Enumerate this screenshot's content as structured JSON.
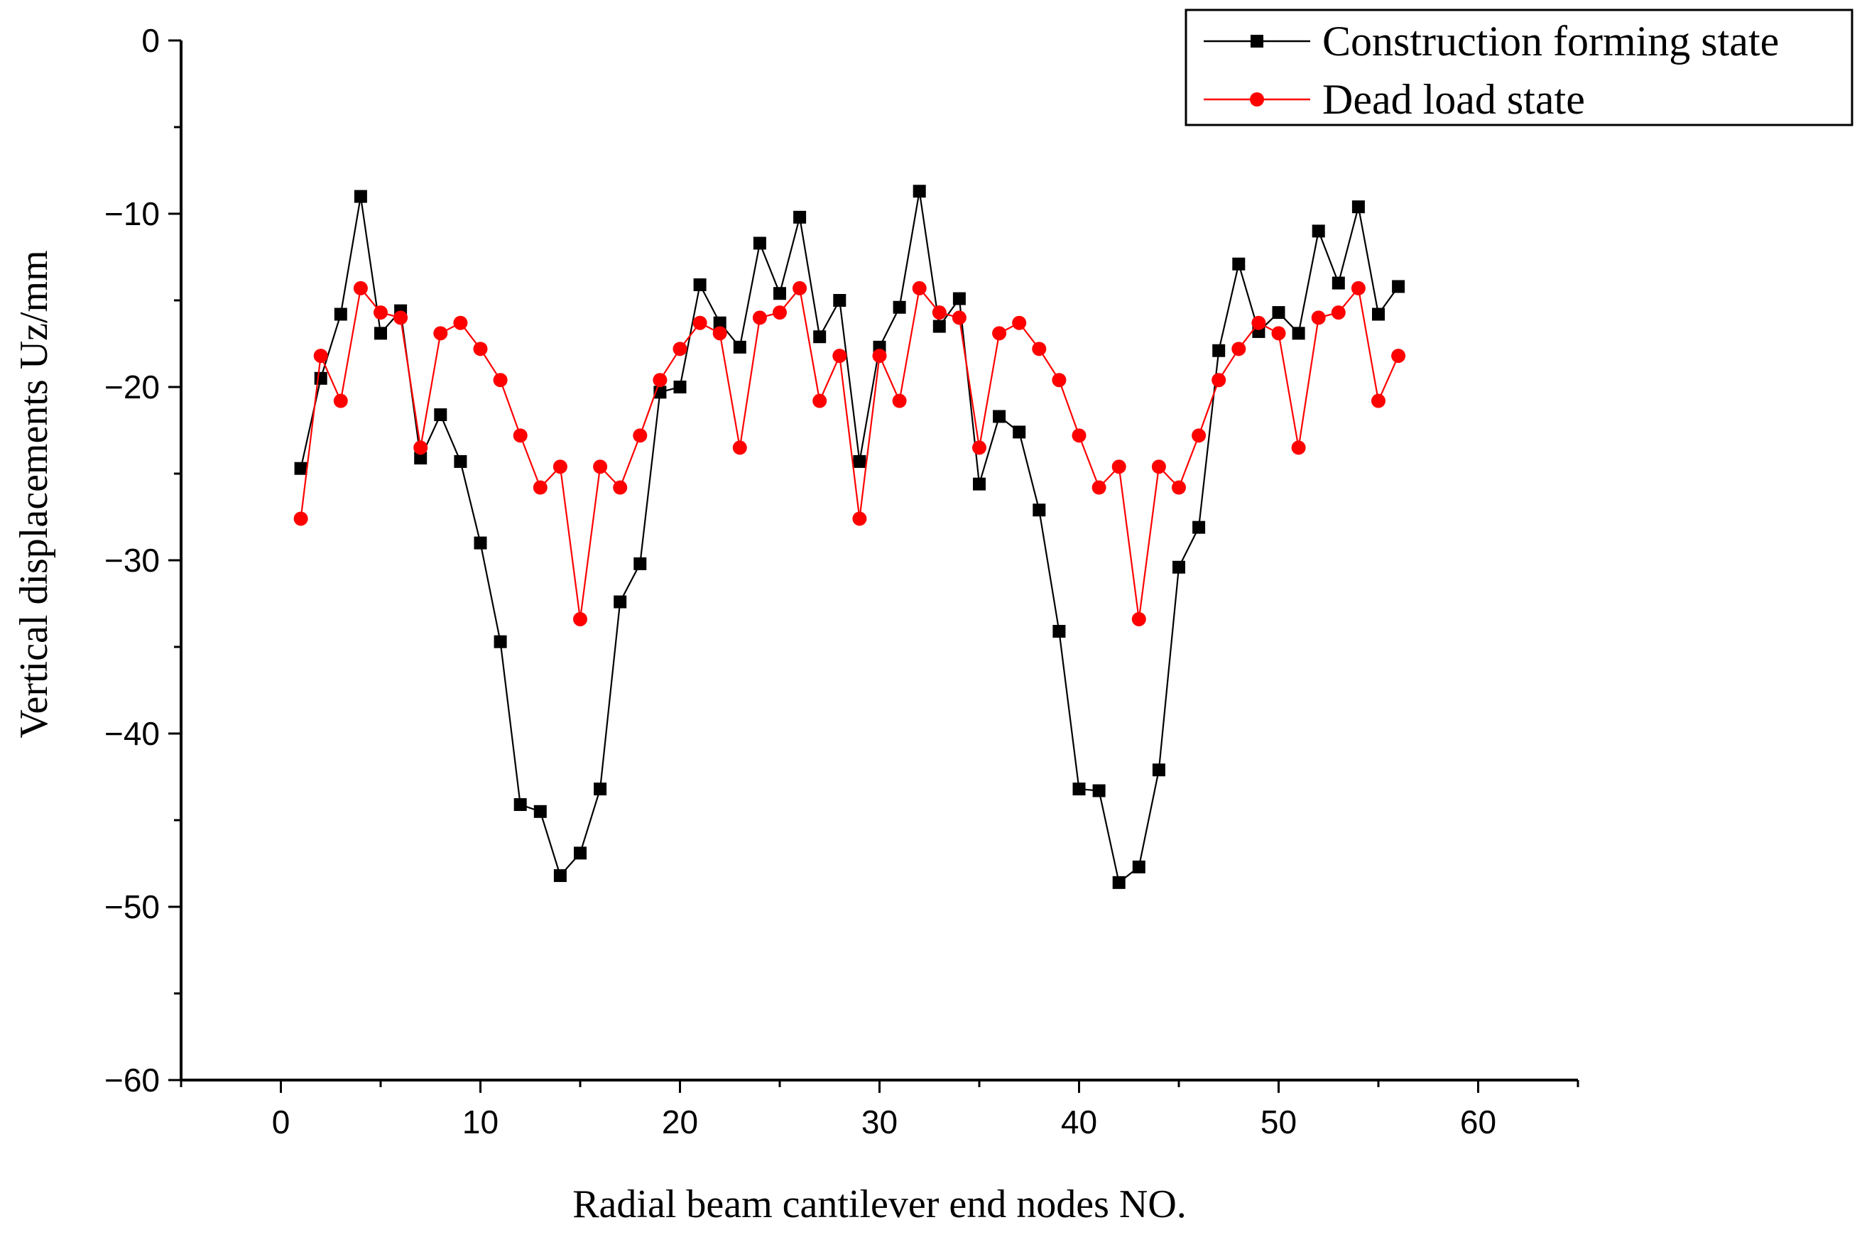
{
  "chart_data": {
    "type": "line",
    "title": "",
    "xlabel": "Radial beam cantilever end nodes NO.",
    "ylabel": "Vertical displacements Uz/mm",
    "xlim": [
      -5,
      65
    ],
    "ylim": [
      -60,
      0
    ],
    "x_ticks": [
      0,
      10,
      20,
      30,
      40,
      50,
      60
    ],
    "y_ticks": [
      0,
      -10,
      -20,
      -30,
      -40,
      -50,
      -60
    ],
    "x_tick_labels": [
      "0",
      "10",
      "20",
      "30",
      "40",
      "50",
      "60"
    ],
    "y_tick_labels": [
      "0",
      "−10",
      "−20",
      "−30",
      "−40",
      "−50",
      "−60"
    ],
    "grid": false,
    "legend_position": "top-right",
    "x": [
      1,
      2,
      3,
      4,
      5,
      6,
      7,
      8,
      9,
      10,
      11,
      12,
      13,
      14,
      15,
      16,
      17,
      18,
      19,
      20,
      21,
      22,
      23,
      24,
      25,
      26,
      27,
      28,
      29,
      30,
      31,
      32,
      33,
      34,
      35,
      36,
      37,
      38,
      39,
      40,
      41,
      42,
      43,
      44,
      45,
      46,
      47,
      48,
      49,
      50,
      51,
      52,
      53,
      54,
      55,
      56
    ],
    "series": [
      {
        "name": "Construction forming state",
        "color": "#000000",
        "marker": "square",
        "values": [
          -24.7,
          -19.5,
          -15.8,
          -9.0,
          -16.9,
          -15.6,
          -24.1,
          -21.6,
          -24.3,
          -29.0,
          -34.7,
          -44.1,
          -44.5,
          -48.2,
          -46.9,
          -43.2,
          -32.4,
          -30.2,
          -20.3,
          -20.0,
          -14.1,
          -16.3,
          -17.7,
          -11.7,
          -14.6,
          -10.2,
          -17.1,
          -15.0,
          -24.3,
          -17.7,
          -15.4,
          -8.7,
          -16.5,
          -14.9,
          -25.6,
          -21.7,
          -22.6,
          -27.1,
          -34.1,
          -43.2,
          -43.3,
          -48.6,
          -47.7,
          -42.1,
          -30.4,
          -28.1,
          -17.9,
          -12.9,
          -16.8,
          -15.7,
          -16.9,
          -11.0,
          -14.0,
          -9.6,
          -15.8,
          -14.2
        ]
      },
      {
        "name": "Dead load state",
        "color": "#ff0000",
        "marker": "circle",
        "values": [
          -27.6,
          -18.2,
          -20.8,
          -14.3,
          -15.7,
          -16.0,
          -23.5,
          -16.9,
          -16.3,
          -17.8,
          -19.6,
          -22.8,
          -25.8,
          -24.6,
          -33.4,
          -24.6,
          -25.8,
          -22.8,
          -19.6,
          -17.8,
          -16.3,
          -16.9,
          -23.5,
          -16.0,
          -15.7,
          -14.3,
          -20.8,
          -18.2,
          -27.6,
          -18.2,
          -20.8,
          -14.3,
          -15.7,
          -16.0,
          -23.5,
          -16.9,
          -16.3,
          -17.8,
          -19.6,
          -22.8,
          -25.8,
          -24.6,
          -33.4,
          -24.6,
          -25.8,
          -22.8,
          -19.6,
          -17.8,
          -16.3,
          -16.9,
          -23.5,
          -16.0,
          -15.7,
          -14.3,
          -20.8,
          -18.2
        ]
      }
    ]
  }
}
